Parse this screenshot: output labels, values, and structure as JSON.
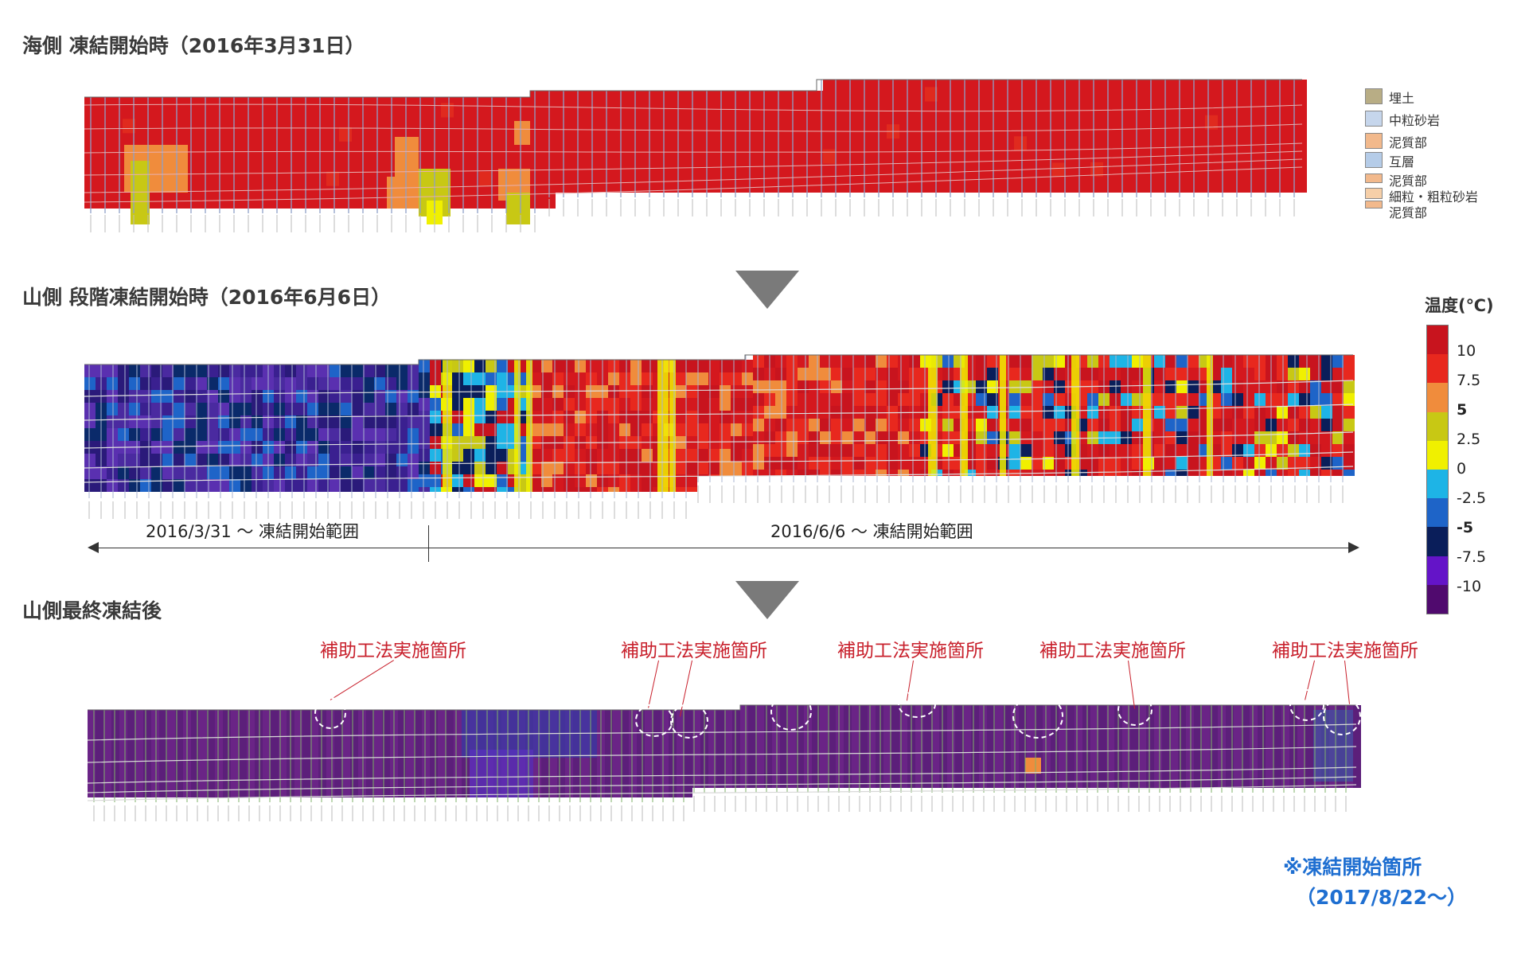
{
  "titles": {
    "panel1": "海側 凍結開始時（2016年3月31日）",
    "panel2": "山側 段階凍結開始時（2016年6月6日）",
    "panel3": "山側最終凍結後"
  },
  "geology_legend": [
    {
      "label": "埋土",
      "color": "#b8ad85"
    },
    {
      "label": "中粒砂岩",
      "color": "#c6d6ec"
    },
    {
      "label": "泥質部",
      "color": "#f2b98c"
    },
    {
      "label": "互層",
      "color": "#b5cce8"
    },
    {
      "label": "泥質部",
      "color": "#f2b98c"
    },
    {
      "label": "細粒・粗粒砂岩",
      "color": "#f6cfa8"
    },
    {
      "label": "泥質部",
      "color": "#f2b98c"
    }
  ],
  "temperature_scale": {
    "title": "温度(℃)",
    "ticks": [
      "10",
      "7.5",
      "5",
      "2.5",
      "0",
      "-2.5",
      "-5",
      "-7.5",
      "-10"
    ],
    "bold_ticks": [
      "5",
      "-5"
    ],
    "colors": [
      "#c8141e",
      "#e8281e",
      "#f08c3c",
      "#c8c814",
      "#f0f000",
      "#1eb4e6",
      "#1e64c8",
      "#0a1e5a",
      "#6414c8",
      "#500a6e"
    ]
  },
  "range_labels": {
    "left": "2016/3/31 ～ 凍結開始範囲",
    "right": "2016/6/6 ～ 凍結開始範囲"
  },
  "annotations": {
    "label": "補助工法実施箇所",
    "items": [
      "補助工法実施箇所",
      "補助工法実施箇所",
      "補助工法実施箇所",
      "補助工法実施箇所",
      "補助工法実施箇所"
    ]
  },
  "note": {
    "line1": "※凍結開始箇所",
    "line2": "（2017/8/22～）"
  }
}
